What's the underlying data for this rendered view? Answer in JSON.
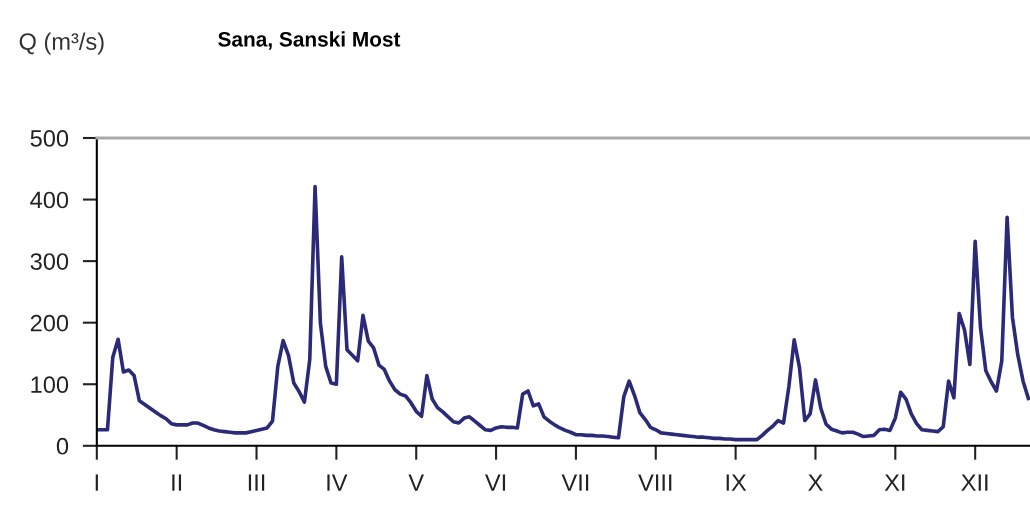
{
  "chart_data": {
    "type": "line",
    "title": "Sana, Sanski Most",
    "ylabel": "Q (m³/s)",
    "categories": [
      "I",
      null,
      null,
      null,
      null,
      null,
      null,
      null,
      null,
      null,
      null,
      null,
      null,
      null,
      null,
      "II",
      null,
      null,
      null,
      null,
      null,
      null,
      null,
      null,
      null,
      null,
      null,
      null,
      null,
      null,
      "III",
      null,
      null,
      null,
      null,
      null,
      null,
      null,
      null,
      null,
      null,
      null,
      null,
      null,
      null,
      "IV",
      null,
      null,
      null,
      null,
      null,
      null,
      null,
      null,
      null,
      null,
      null,
      null,
      null,
      null,
      "V",
      null,
      null,
      null,
      null,
      null,
      null,
      null,
      null,
      null,
      null,
      null,
      null,
      null,
      null,
      "VI",
      null,
      null,
      null,
      null,
      null,
      null,
      null,
      null,
      null,
      null,
      null,
      null,
      null,
      null,
      "VII",
      null,
      null,
      null,
      null,
      null,
      null,
      null,
      null,
      null,
      null,
      null,
      null,
      null,
      null,
      "VIII",
      null,
      null,
      null,
      null,
      null,
      null,
      null,
      null,
      null,
      null,
      null,
      null,
      null,
      null,
      "IX",
      null,
      null,
      null,
      null,
      null,
      null,
      null,
      null,
      null,
      null,
      null,
      null,
      null,
      null,
      "X",
      null,
      null,
      null,
      null,
      null,
      null,
      null,
      null,
      null,
      null,
      null,
      null,
      null,
      null,
      "XI",
      null,
      null,
      null,
      null,
      null,
      null,
      null,
      null,
      null,
      null,
      null,
      null,
      null,
      null,
      "XII",
      null,
      null,
      null,
      null,
      null,
      null,
      null,
      null,
      null,
      null
    ],
    "series": [
      {
        "color": "#2b2a78",
        "values": [
          26,
          26,
          26,
          144,
          173,
          120,
          123,
          114,
          73,
          67,
          61,
          55,
          49,
          44,
          36,
          34,
          34,
          34,
          37,
          37,
          33,
          29,
          26,
          24,
          23,
          22,
          21,
          21,
          21,
          23,
          25,
          27,
          29,
          40,
          129,
          171,
          147,
          102,
          88,
          71,
          140,
          421,
          199,
          129,
          102,
          100,
          307,
          156,
          147,
          138,
          212,
          170,
          159,
          131,
          124,
          105,
          91,
          84,
          81,
          70,
          56,
          48,
          114,
          76,
          62,
          55,
          47,
          39,
          37,
          45,
          47,
          40,
          33,
          26,
          25,
          29,
          31,
          30,
          30,
          29,
          84,
          89,
          65,
          68,
          47,
          40,
          34,
          29,
          25,
          22,
          18,
          18,
          17,
          17,
          16,
          16,
          15,
          14,
          13,
          80,
          105,
          82,
          54,
          43,
          30,
          26,
          21,
          20,
          19,
          18,
          17,
          16,
          15,
          14,
          14,
          13,
          12,
          12,
          11,
          11,
          10,
          10,
          10,
          10,
          10,
          17,
          25,
          32,
          41,
          37,
          96,
          172,
          127,
          41,
          52,
          107,
          61,
          35,
          27,
          24,
          21,
          22,
          22,
          19,
          15,
          16,
          17,
          26,
          27,
          25,
          45,
          87,
          76,
          52,
          36,
          26,
          25,
          24,
          23,
          31,
          105,
          78,
          215,
          188,
          132,
          332,
          192,
          122,
          104,
          89,
          138,
          371,
          209,
          148,
          105,
          77
        ]
      }
    ],
    "ylim": [
      0,
      500
    ],
    "yticks": [
      0,
      100,
      200,
      300,
      400,
      500
    ],
    "grid": false,
    "marker": "none",
    "line_style": "solid"
  }
}
